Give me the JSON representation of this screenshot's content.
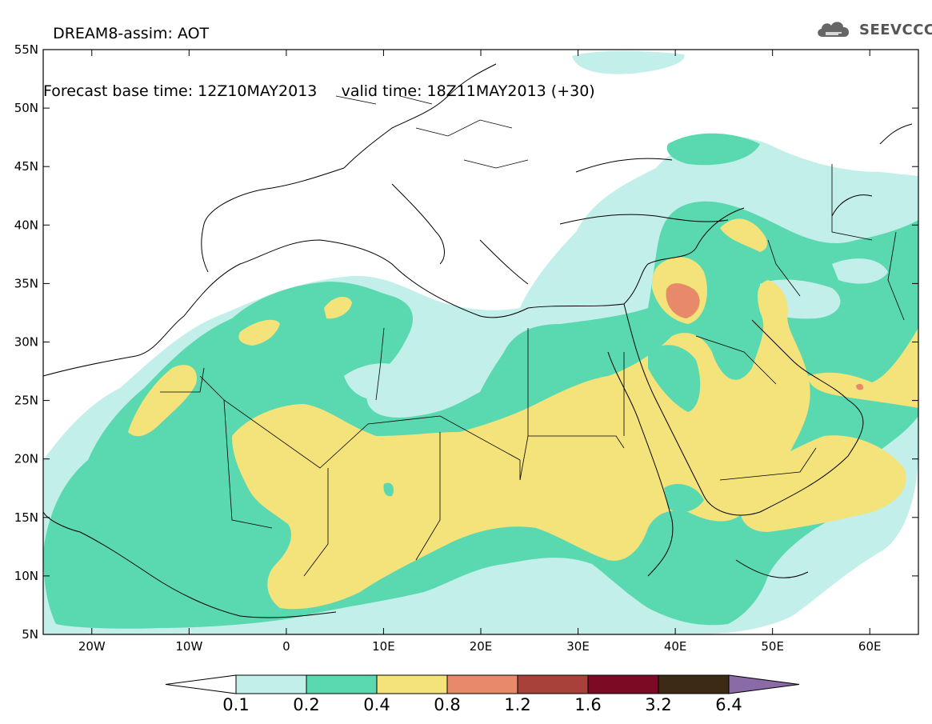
{
  "title": {
    "line1": "DREAM8-assim: AOT",
    "line2_base": "Forecast base time: 12Z10MAY2013",
    "line2_valid": "valid time: 18Z11MAY2013 (+30)"
  },
  "logo": {
    "text": "SEEVCCC",
    "icon": "cloud-logo-icon"
  },
  "map": {
    "lon_range": [
      -25,
      65
    ],
    "lat_range": [
      5,
      55
    ],
    "lat_ticks": [
      "55N",
      "50N",
      "45N",
      "40N",
      "35N",
      "30N",
      "25N",
      "20N",
      "15N",
      "10N",
      "5N"
    ],
    "lon_ticks": [
      "20W",
      "10W",
      "0",
      "10E",
      "20E",
      "30E",
      "40E",
      "50E",
      "60E"
    ]
  },
  "colorbar": {
    "levels": [
      "0.1",
      "0.2",
      "0.4",
      "0.8",
      "1.2",
      "1.6",
      "3.2",
      "6.4"
    ],
    "colors": [
      "#c2efe9",
      "#5ad9b0",
      "#f4e27a",
      "#e8896a",
      "#a8413a",
      "#7d0a25",
      "#3d2a14",
      "#8b6aa8"
    ]
  }
}
